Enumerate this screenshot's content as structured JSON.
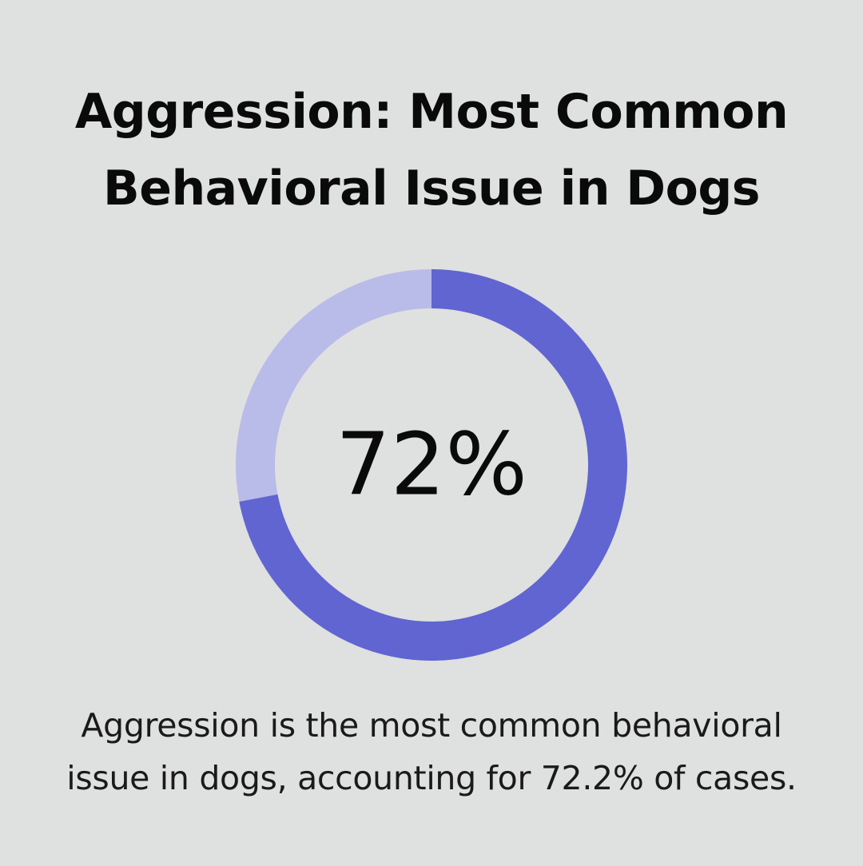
{
  "title": {
    "line1": "Aggression: Most Common",
    "line2": "Behavioral Issue in Dogs"
  },
  "chart_data": {
    "type": "pie",
    "variant": "donut",
    "slices": [
      {
        "value": 72,
        "color": "#6065d1"
      },
      {
        "value": 28,
        "color": "#b9bbe9"
      }
    ],
    "center_label": "72%"
  },
  "caption": {
    "line1": "Aggression is the most common behavioral",
    "line2": "issue in dogs, accounting for 72.2% of cases."
  },
  "colors": {
    "background": "#dfe0e0",
    "primary": "#6065d1",
    "secondary": "#b9bbe9",
    "text": "#0a0a0a"
  }
}
